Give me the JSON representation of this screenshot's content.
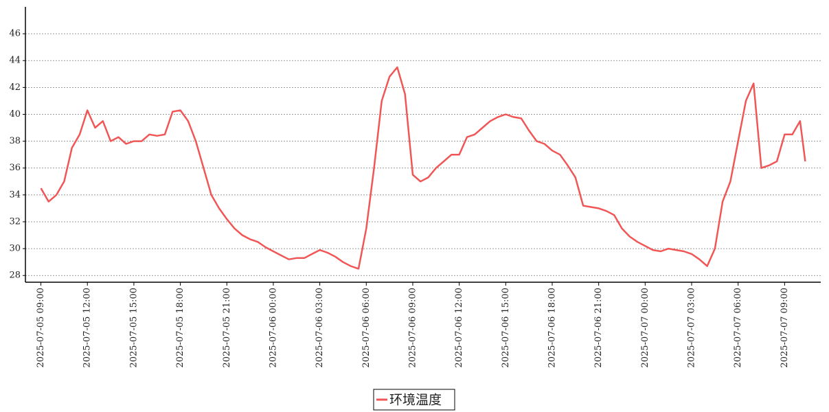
{
  "chart_data": {
    "type": "line",
    "x": [
      "2025-07-05 09:00",
      "2025-07-05 09:30",
      "2025-07-05 10:00",
      "2025-07-05 10:30",
      "2025-07-05 11:00",
      "2025-07-05 11:30",
      "2025-07-05 12:00",
      "2025-07-05 12:30",
      "2025-07-05 13:00",
      "2025-07-05 13:30",
      "2025-07-05 14:00",
      "2025-07-05 14:30",
      "2025-07-05 15:00",
      "2025-07-05 15:30",
      "2025-07-05 16:00",
      "2025-07-05 16:30",
      "2025-07-05 17:00",
      "2025-07-05 17:30",
      "2025-07-05 18:00",
      "2025-07-05 18:30",
      "2025-07-05 19:00",
      "2025-07-05 19:30",
      "2025-07-05 20:00",
      "2025-07-05 20:30",
      "2025-07-05 21:00",
      "2025-07-05 21:30",
      "2025-07-05 22:00",
      "2025-07-05 22:30",
      "2025-07-05 23:00",
      "2025-07-05 23:30",
      "2025-07-06 00:00",
      "2025-07-06 00:30",
      "2025-07-06 01:00",
      "2025-07-06 01:30",
      "2025-07-06 02:00",
      "2025-07-06 02:30",
      "2025-07-06 03:00",
      "2025-07-06 03:30",
      "2025-07-06 04:00",
      "2025-07-06 04:30",
      "2025-07-06 05:00",
      "2025-07-06 05:30",
      "2025-07-06 06:00",
      "2025-07-06 06:30",
      "2025-07-06 07:00",
      "2025-07-06 07:30",
      "2025-07-06 08:00",
      "2025-07-06 08:30",
      "2025-07-06 09:00",
      "2025-07-06 09:30",
      "2025-07-06 10:00",
      "2025-07-06 10:30",
      "2025-07-06 11:00",
      "2025-07-06 11:30",
      "2025-07-06 12:00",
      "2025-07-06 12:30",
      "2025-07-06 13:00",
      "2025-07-06 13:30",
      "2025-07-06 14:00",
      "2025-07-06 14:30",
      "2025-07-06 15:00",
      "2025-07-06 15:30",
      "2025-07-06 16:00",
      "2025-07-06 16:30",
      "2025-07-06 17:00",
      "2025-07-06 17:30",
      "2025-07-06 18:00",
      "2025-07-06 18:30",
      "2025-07-06 19:00",
      "2025-07-06 19:30",
      "2025-07-06 20:00",
      "2025-07-06 20:30",
      "2025-07-06 21:00",
      "2025-07-06 21:30",
      "2025-07-06 22:00",
      "2025-07-06 22:30",
      "2025-07-06 23:00",
      "2025-07-06 23:30",
      "2025-07-07 00:00",
      "2025-07-07 00:30",
      "2025-07-07 01:00",
      "2025-07-07 01:30",
      "2025-07-07 02:00",
      "2025-07-07 02:30",
      "2025-07-07 03:00",
      "2025-07-07 03:30",
      "2025-07-07 04:00",
      "2025-07-07 04:30",
      "2025-07-07 05:00",
      "2025-07-07 05:30",
      "2025-07-07 06:00",
      "2025-07-07 06:30",
      "2025-07-07 07:00",
      "2025-07-07 07:30",
      "2025-07-07 08:00",
      "2025-07-07 08:30",
      "2025-07-07 09:00",
      "2025-07-07 09:30",
      "2025-07-07 10:00",
      "2025-07-07 10:20"
    ],
    "series": [
      {
        "name": "环境温度",
        "color": "#f05656",
        "values": [
          34.5,
          33.5,
          34,
          35,
          37.5,
          38.5,
          40.3,
          39,
          39.5,
          38,
          38.3,
          37.8,
          38,
          38,
          38.5,
          38.4,
          38.5,
          40.2,
          40.3,
          39.5,
          38,
          36,
          34,
          33,
          32.2,
          31.5,
          31,
          30.7,
          30.5,
          30.1,
          29.8,
          29.5,
          29.2,
          29.3,
          29.3,
          29.6,
          29.9,
          29.7,
          29.4,
          29,
          28.7,
          28.5,
          31.5,
          36,
          41,
          42.8,
          43.5,
          41.5,
          35.5,
          35,
          35.3,
          36,
          36.5,
          37,
          37,
          38.3,
          38.5,
          39,
          39.5,
          39.8,
          40,
          39.8,
          39.7,
          38.8,
          38,
          37.8,
          37.3,
          37,
          36.2,
          35.3,
          33.2,
          33.1,
          33,
          32.8,
          32.5,
          31.5,
          30.9,
          30.5,
          30.2,
          29.9,
          29.8,
          30,
          29.9,
          29.8,
          29.6,
          29.2,
          28.7,
          30,
          33.5,
          35,
          38,
          41,
          42.3,
          36,
          36.2,
          36.5,
          38.5,
          38.5,
          39.5,
          36.5
        ]
      }
    ],
    "xlim": [
      "2025-07-05 08:00",
      "2025-07-07 11:20"
    ],
    "xticks": [
      "2025-07-05 09:00",
      "2025-07-05 12:00",
      "2025-07-05 15:00",
      "2025-07-05 18:00",
      "2025-07-05 21:00",
      "2025-07-06 00:00",
      "2025-07-06 03:00",
      "2025-07-06 06:00",
      "2025-07-06 09:00",
      "2025-07-06 12:00",
      "2025-07-06 15:00",
      "2025-07-06 18:00",
      "2025-07-06 21:00",
      "2025-07-07 00:00",
      "2025-07-07 03:00",
      "2025-07-07 06:00",
      "2025-07-07 09:00"
    ],
    "ylim": [
      27.5,
      48
    ],
    "yticks": [
      28,
      30,
      32,
      34,
      36,
      38,
      40,
      42,
      44,
      46
    ],
    "grid": true,
    "legend": "bottom"
  }
}
